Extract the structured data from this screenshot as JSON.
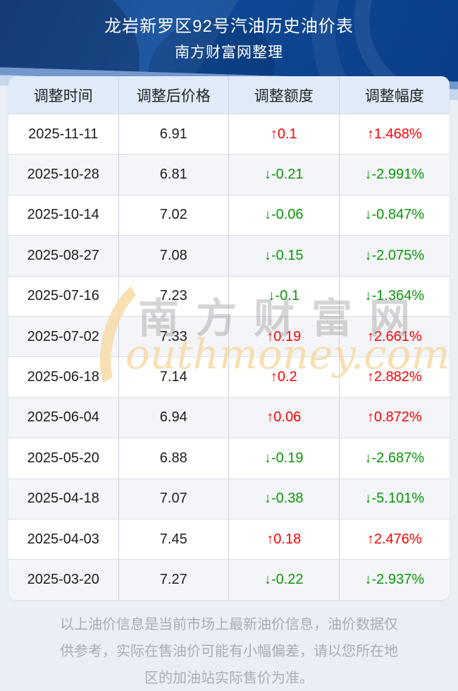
{
  "header": {
    "title": "龙岩新罗区92号汽油历史油价表",
    "subtitle": "南方财富网整理",
    "bg_color": "#0d4694"
  },
  "table": {
    "columns": [
      "调整时间",
      "调整后价格",
      "调整额度",
      "调整幅度"
    ],
    "rows": [
      {
        "date": "2025-11-11",
        "price": "6.91",
        "change": "↑0.1",
        "pct": "↑1.468%",
        "direction": "up"
      },
      {
        "date": "2025-10-28",
        "price": "6.81",
        "change": "↓-0.21",
        "pct": "↓-2.991%",
        "direction": "down"
      },
      {
        "date": "2025-10-14",
        "price": "7.02",
        "change": "↓-0.06",
        "pct": "↓-0.847%",
        "direction": "down"
      },
      {
        "date": "2025-08-27",
        "price": "7.08",
        "change": "↓-0.15",
        "pct": "↓-2.075%",
        "direction": "down"
      },
      {
        "date": "2025-07-16",
        "price": "7.23",
        "change": "↓-0.1",
        "pct": "↓-1.364%",
        "direction": "down"
      },
      {
        "date": "2025-07-02",
        "price": "7.33",
        "change": "↑0.19",
        "pct": "↑2.661%",
        "direction": "up"
      },
      {
        "date": "2025-06-18",
        "price": "7.14",
        "change": "↑0.2",
        "pct": "↑2.882%",
        "direction": "up"
      },
      {
        "date": "2025-06-04",
        "price": "6.94",
        "change": "↑0.06",
        "pct": "↑0.872%",
        "direction": "up"
      },
      {
        "date": "2025-05-20",
        "price": "6.88",
        "change": "↓-0.19",
        "pct": "↓-2.687%",
        "direction": "down"
      },
      {
        "date": "2025-04-18",
        "price": "7.07",
        "change": "↓-0.38",
        "pct": "↓-5.101%",
        "direction": "down"
      },
      {
        "date": "2025-04-03",
        "price": "7.45",
        "change": "↑0.18",
        "pct": "↑2.476%",
        "direction": "up"
      },
      {
        "date": "2025-03-20",
        "price": "7.27",
        "change": "↓-0.22",
        "pct": "↓-2.937%",
        "direction": "down"
      }
    ],
    "colors": {
      "up": "#fe0000",
      "down": "#0a9609",
      "header_bg": "#e0ebf9"
    }
  },
  "watermark": {
    "cjk": "南方财富网",
    "latin": "outhmoney.com"
  },
  "footer": {
    "lines": [
      "以上油价信息是当前市场上最新油价信息，油价数据仅",
      "供参考，实际在售油价可能有小幅偏差，请以您所在地",
      "区的加油站实际售价为准。"
    ]
  },
  "chart_data": {
    "type": "table",
    "title": "龙岩新罗区92号汽油历史油价表",
    "columns": [
      "调整时间",
      "调整后价格",
      "调整额度",
      "调整幅度"
    ],
    "rows": [
      [
        "2025-11-11",
        6.91,
        0.1,
        "1.468%"
      ],
      [
        "2025-10-28",
        6.81,
        -0.21,
        "-2.991%"
      ],
      [
        "2025-10-14",
        7.02,
        -0.06,
        "-0.847%"
      ],
      [
        "2025-08-27",
        7.08,
        -0.15,
        "-2.075%"
      ],
      [
        "2025-07-16",
        7.23,
        -0.1,
        "-1.364%"
      ],
      [
        "2025-07-02",
        7.33,
        0.19,
        "2.661%"
      ],
      [
        "2025-06-18",
        7.14,
        0.2,
        "2.882%"
      ],
      [
        "2025-06-04",
        6.94,
        0.06,
        "0.872%"
      ],
      [
        "2025-05-20",
        6.88,
        -0.19,
        "-2.687%"
      ],
      [
        "2025-04-18",
        7.07,
        -0.38,
        "-5.101%"
      ],
      [
        "2025-04-03",
        7.45,
        0.18,
        "2.476%"
      ],
      [
        "2025-03-20",
        7.27,
        -0.22,
        "-2.937%"
      ]
    ]
  }
}
